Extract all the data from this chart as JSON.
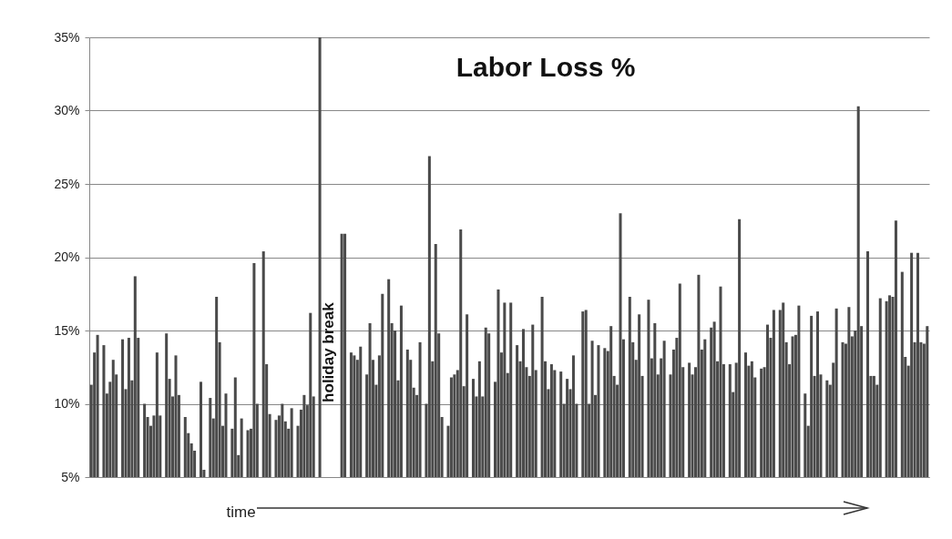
{
  "chart_data": {
    "type": "bar",
    "title": "Labor Loss %",
    "xlabel": "time",
    "annotations": [
      "holiday break"
    ],
    "color": "#4a4a4a",
    "grid": "y",
    "ylim": [
      5,
      35
    ],
    "yticks": [
      {
        "value": 5,
        "label": "5%"
      },
      {
        "value": 10,
        "label": "10%"
      },
      {
        "value": 15,
        "label": "15%"
      },
      {
        "value": 20,
        "label": "20%"
      },
      {
        "value": 25,
        "label": "25%"
      },
      {
        "value": 30,
        "label": "30%"
      },
      {
        "value": 35,
        "label": "35%"
      }
    ],
    "values": [
      11.3,
      13.5,
      14.7,
      null,
      14,
      10.7,
      11.5,
      13,
      12,
      null,
      14.4,
      11,
      14.5,
      11.6,
      18.7,
      14.5,
      null,
      10,
      9.1,
      8.5,
      9.2,
      13.5,
      9.2,
      null,
      14.8,
      11.7,
      10.5,
      13.3,
      10.6,
      null,
      9.1,
      8,
      7.3,
      6.8,
      null,
      11.5,
      5.5,
      null,
      10.4,
      9,
      17.3,
      14.2,
      8.5,
      10.7,
      null,
      8.3,
      11.8,
      6.5,
      9,
      null,
      8.2,
      8.3,
      19.6,
      10,
      null,
      20.4,
      12.7,
      9.3,
      null,
      8.9,
      9.2,
      10,
      8.8,
      8.3,
      9.7,
      null,
      8.5,
      9.6,
      10.6,
      9.9,
      16.2,
      10.5,
      null,
      35,
      null,
      null,
      null,
      null,
      null,
      null,
      21.6,
      21.6,
      null,
      13.5,
      13.3,
      13,
      13.9,
      null,
      12,
      15.5,
      13,
      11.3,
      13.3,
      17.5,
      null,
      18.5,
      15.5,
      15,
      11.6,
      16.7,
      null,
      13.7,
      13,
      11.1,
      10.6,
      14.2,
      null,
      10,
      26.9,
      12.9,
      20.9,
      14.8,
      9.1,
      null,
      8.5,
      11.8,
      12,
      12.3,
      21.9,
      11.2,
      16.1,
      null,
      11.7,
      10.5,
      12.9,
      10.5,
      15.2,
      14.8,
      null,
      11.5,
      17.8,
      13.5,
      16.9,
      12.1,
      16.9,
      null,
      14,
      12.9,
      15.1,
      12.5,
      11.9,
      15.4,
      12.3,
      null,
      17.3,
      12.9,
      11,
      12.7,
      12.3,
      null,
      12.2,
      10,
      11.7,
      11,
      13.3,
      10,
      null,
      16.3,
      16.4,
      10,
      14.3,
      10.6,
      14,
      null,
      13.8,
      13.6,
      15.3,
      11.9,
      11.3,
      23,
      14.4,
      null,
      17.3,
      14.2,
      13,
      16.1,
      11.9,
      null,
      17.1,
      13.1,
      15.5,
      12,
      13.1,
      14.3,
      null,
      12,
      13.7,
      14.5,
      18.2,
      12.5,
      null,
      12.8,
      12,
      12.5,
      18.8,
      13.7,
      14.4,
      null,
      15.2,
      15.6,
      12.9,
      18,
      12.7,
      null,
      12.7,
      10.8,
      12.8,
      22.6,
      null,
      13.5,
      12.6,
      12.9,
      11.8,
      null,
      12.4,
      12.5,
      15.4,
      14.5,
      16.4,
      null,
      16.4,
      16.9,
      14.2,
      12.7,
      14.6,
      14.7,
      16.7,
      null,
      10.7,
      8.5,
      16,
      11.9,
      16.3,
      12,
      null,
      11.6,
      11.3,
      12.8,
      16.5,
      null,
      14.2,
      14.1,
      16.6,
      14.6,
      15,
      30.3,
      15.3,
      null,
      20.4,
      11.9,
      11.9,
      11.3,
      17.2,
      null,
      17,
      17.4,
      17.3,
      22.5,
      null,
      19,
      13.2,
      12.6,
      20.3,
      14.2,
      20.3,
      14.2,
      14.1,
      15.3
    ],
    "categories": [
      null,
      null,
      null,
      null,
      null,
      null,
      null,
      null,
      null,
      null,
      null,
      null,
      null,
      null,
      null,
      null,
      null,
      null,
      null,
      null,
      null,
      null,
      null,
      null,
      null,
      null,
      null,
      null,
      null,
      null,
      null,
      null,
      null,
      null,
      null,
      null,
      null,
      null,
      null,
      null,
      null,
      null,
      null,
      null,
      null,
      null,
      null,
      null,
      null,
      null,
      null,
      null,
      null,
      null,
      null,
      null,
      null,
      null,
      null,
      null,
      null,
      null,
      null,
      null,
      null,
      null,
      null,
      null,
      null,
      null,
      null,
      null,
      null,
      null,
      null,
      null,
      null,
      null,
      null,
      null,
      null,
      null,
      null,
      null,
      null,
      null,
      null,
      null,
      null,
      null,
      null,
      null,
      null,
      null,
      null,
      null,
      null,
      null,
      null,
      null,
      null,
      null,
      null,
      null,
      null,
      null,
      null,
      null,
      null,
      null,
      null,
      null,
      null,
      null,
      null,
      null,
      null,
      null,
      null,
      null,
      null,
      null,
      null,
      null,
      null,
      null,
      null,
      null,
      null,
      null,
      null,
      null,
      null,
      null,
      null,
      null,
      null,
      null,
      null,
      null,
      null,
      null,
      null,
      null,
      null,
      null,
      null,
      null,
      null,
      null,
      null,
      null,
      null,
      null,
      null,
      null,
      null,
      null,
      null,
      null,
      null,
      null,
      null,
      null,
      null,
      null,
      null,
      null,
      null,
      null,
      null,
      null,
      null,
      null,
      null,
      null,
      null,
      null,
      null,
      null,
      null,
      null,
      null,
      null,
      null,
      null,
      null,
      null,
      null,
      null,
      null,
      null,
      null,
      null,
      null,
      null,
      null,
      null,
      null,
      null,
      null,
      null,
      null,
      null,
      null,
      null,
      null,
      null,
      null,
      null,
      null,
      null,
      null,
      null,
      null,
      null,
      null,
      null,
      null,
      null,
      null,
      null,
      null,
      null,
      null,
      null,
      null,
      null,
      null,
      null,
      null,
      null,
      null,
      null,
      null,
      null,
      null,
      null,
      null,
      null,
      null,
      null,
      null,
      null,
      null,
      null,
      null,
      null,
      null,
      null,
      null,
      null,
      null,
      null,
      null,
      null,
      null,
      null,
      null,
      null,
      null,
      null,
      null,
      null,
      null,
      null,
      null,
      null
    ]
  }
}
